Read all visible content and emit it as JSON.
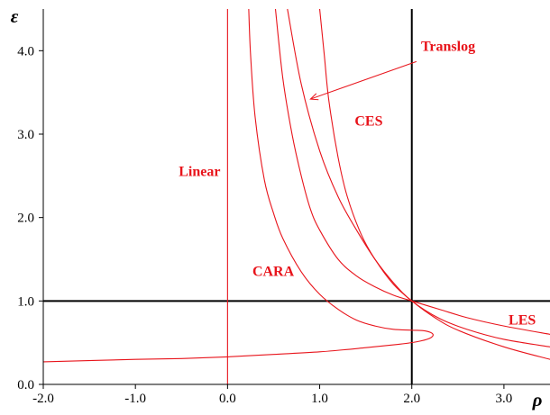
{
  "chart_data": {
    "type": "line",
    "title": "",
    "xlabel": "ρ",
    "ylabel": "ε",
    "xlim": [
      -2.0,
      3.5
    ],
    "ylim": [
      0.0,
      4.5
    ],
    "x_ticks": [
      "-2.0",
      "-1.0",
      "0.0",
      "1.0",
      "2.0",
      "3.0"
    ],
    "y_ticks": [
      "0.0",
      "1.0",
      "2.0",
      "3.0",
      "4.0"
    ],
    "grid": false,
    "colors": {
      "curves": "#e8141b",
      "labels": "#e8141b",
      "axes": "#000000",
      "reference_lines": "#000000"
    },
    "reference_lines": [
      {
        "orientation": "vertical",
        "value": 2.0
      },
      {
        "orientation": "horizontal",
        "value": 1.0
      }
    ],
    "series": [
      {
        "name": "Linear",
        "points": [
          [
            0.0,
            0.0
          ],
          [
            0.0,
            4.5
          ]
        ]
      },
      {
        "name": "CARA",
        "points": [
          [
            0.23,
            4.5
          ],
          [
            0.25,
            3.95
          ],
          [
            0.3,
            3.2
          ],
          [
            0.4,
            2.45
          ],
          [
            0.5,
            2.05
          ],
          [
            0.6,
            1.75
          ],
          [
            0.8,
            1.35
          ],
          [
            1.0,
            1.08
          ],
          [
            1.2,
            0.9
          ],
          [
            1.4,
            0.77
          ],
          [
            1.6,
            0.7
          ],
          [
            1.8,
            0.66
          ],
          [
            2.0,
            0.65
          ],
          [
            2.15,
            0.64
          ],
          [
            2.23,
            0.6
          ],
          [
            2.19,
            0.55
          ],
          [
            2.05,
            0.51
          ],
          [
            1.85,
            0.48
          ],
          [
            1.5,
            0.44
          ],
          [
            1.0,
            0.39
          ],
          [
            0.5,
            0.36
          ],
          [
            0.0,
            0.33
          ],
          [
            -0.5,
            0.31
          ],
          [
            -1.0,
            0.3
          ],
          [
            -2.0,
            0.27
          ]
        ]
      },
      {
        "name": "CES",
        "points": [
          [
            0.52,
            4.5
          ],
          [
            0.6,
            3.67
          ],
          [
            0.7,
            3.0
          ],
          [
            0.8,
            2.5
          ],
          [
            0.9,
            2.1
          ],
          [
            1.0,
            1.85
          ],
          [
            1.2,
            1.5
          ],
          [
            1.4,
            1.3
          ],
          [
            1.6,
            1.17
          ],
          [
            1.8,
            1.07
          ],
          [
            2.0,
            1.0
          ],
          [
            2.3,
            0.9
          ],
          [
            2.6,
            0.8
          ],
          [
            3.0,
            0.7
          ],
          [
            3.5,
            0.6
          ]
        ]
      },
      {
        "name": "LES",
        "points": [
          [
            0.65,
            4.5
          ],
          [
            0.8,
            3.6
          ],
          [
            1.0,
            2.8
          ],
          [
            1.2,
            2.25
          ],
          [
            1.4,
            1.85
          ],
          [
            1.6,
            1.5
          ],
          [
            1.8,
            1.22
          ],
          [
            2.0,
            1.0
          ],
          [
            2.3,
            0.79
          ],
          [
            2.6,
            0.66
          ],
          [
            3.0,
            0.54
          ],
          [
            3.5,
            0.45
          ]
        ]
      },
      {
        "name": "Translog",
        "points": [
          [
            1.0,
            4.5
          ],
          [
            1.05,
            3.95
          ],
          [
            1.1,
            3.4
          ],
          [
            1.2,
            2.72
          ],
          [
            1.3,
            2.25
          ],
          [
            1.45,
            1.8
          ],
          [
            1.6,
            1.5
          ],
          [
            1.8,
            1.2
          ],
          [
            2.0,
            1.0
          ],
          [
            2.25,
            0.8
          ],
          [
            2.5,
            0.65
          ],
          [
            3.0,
            0.45
          ],
          [
            3.5,
            0.3
          ]
        ]
      }
    ],
    "annotations": [
      {
        "text": "Translog",
        "x": 2.1,
        "y": 4.0,
        "color": "#e8141b"
      },
      {
        "text": "CES",
        "x": 1.38,
        "y": 3.1,
        "color": "#e8141b"
      },
      {
        "text": "Linear",
        "x": -0.53,
        "y": 2.5,
        "color": "#e8141b"
      },
      {
        "text": "CARA",
        "x": 0.27,
        "y": 1.3,
        "color": "#e8141b"
      },
      {
        "text": "LES",
        "x": 3.05,
        "y": 0.72,
        "color": "#e8141b"
      }
    ],
    "arrows": [
      {
        "from": [
          2.05,
          3.87
        ],
        "to": [
          0.9,
          3.42
        ],
        "color": "#e8141b"
      }
    ]
  }
}
